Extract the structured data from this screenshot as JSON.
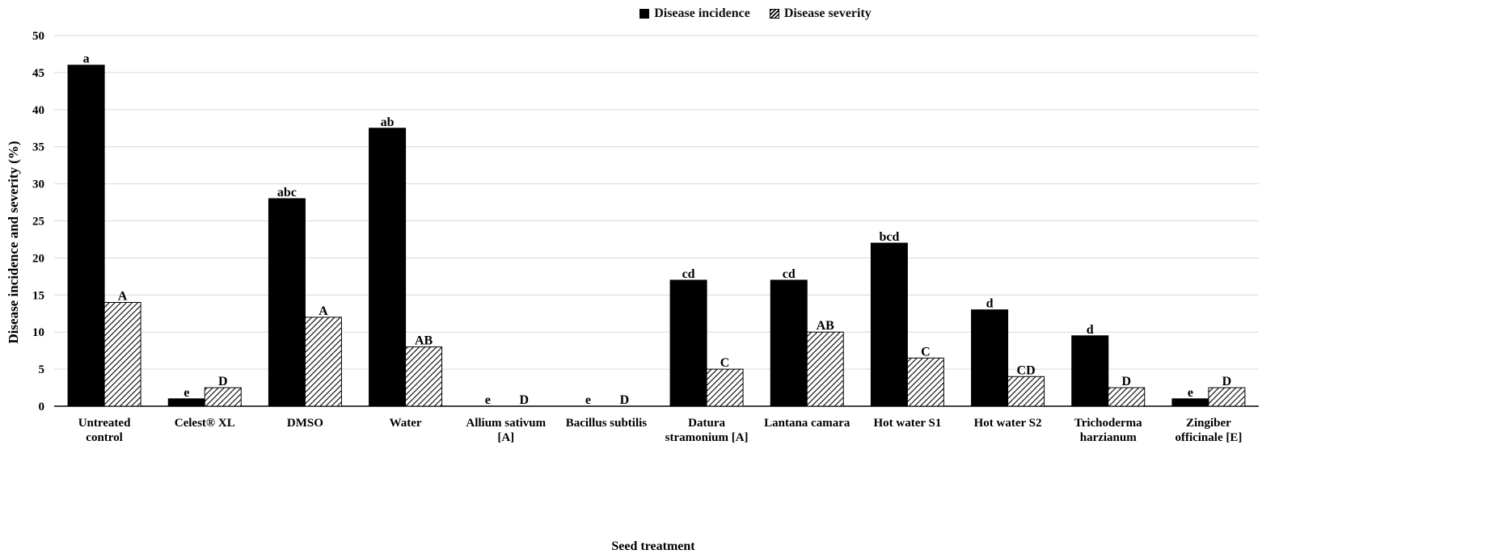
{
  "legend": {
    "series1": "Disease incidence",
    "series2": "Disease severity"
  },
  "chart_data": {
    "type": "bar",
    "xlabel": "Seed treatment",
    "ylabel": "Disease incidence and severity (%)",
    "ylim": [
      0,
      50
    ],
    "yticks": [
      0,
      5,
      10,
      15,
      20,
      25,
      30,
      35,
      40,
      45,
      50
    ],
    "grid": true,
    "legend_position": "top-center",
    "categories": [
      [
        "Untreated",
        "control"
      ],
      [
        "Celest® XL"
      ],
      [
        "DMSO"
      ],
      [
        "Water"
      ],
      [
        "Allium sativum",
        "[A]"
      ],
      [
        "Bacillus subtilis"
      ],
      [
        "Datura",
        "stramonium [A]"
      ],
      [
        "Lantana camara"
      ],
      [
        "Hot water S1"
      ],
      [
        "Hot water S2"
      ],
      [
        "Trichoderma",
        "harzianum"
      ],
      [
        "Zingiber",
        "officinale [E]"
      ]
    ],
    "series": [
      {
        "name": "Disease incidence",
        "color": "#000000",
        "pattern": "solid",
        "values": [
          46,
          1,
          28,
          37.5,
          0,
          0,
          17,
          17,
          22,
          13,
          9.5,
          1
        ],
        "labels": [
          "a",
          "e",
          "abc",
          "ab",
          "e",
          "e",
          "cd",
          "cd",
          "bcd",
          "d",
          "d",
          "e"
        ]
      },
      {
        "name": "Disease severity",
        "color": "#000000",
        "pattern": "hatch",
        "values": [
          14,
          2.5,
          12,
          8,
          0,
          0,
          5,
          10,
          6.5,
          4,
          2.5,
          2.5
        ],
        "labels": [
          "A",
          "D",
          "A",
          "AB",
          "D",
          "D",
          "C",
          "AB",
          "C",
          "CD",
          "D",
          "D"
        ]
      }
    ]
  }
}
